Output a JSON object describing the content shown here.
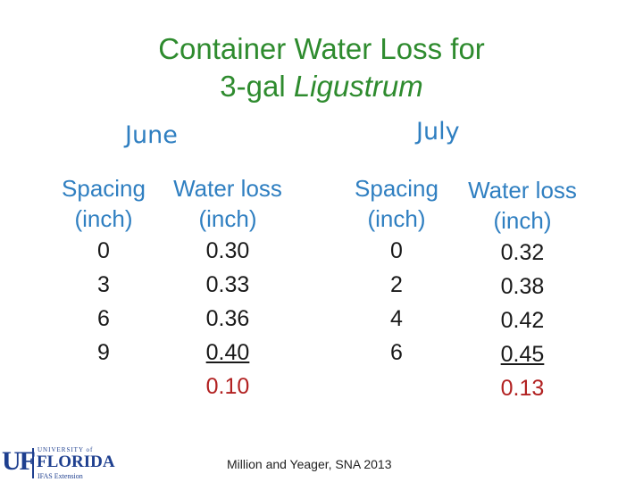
{
  "title": {
    "line1": "Container Water Loss for",
    "line2_prefix": "3-gal ",
    "line2_italic": "Ligustrum"
  },
  "june": {
    "label": "June",
    "spacing_header": [
      "Spacing",
      "(inch)"
    ],
    "loss_header": [
      "Water loss",
      "(inch)"
    ],
    "spacing": [
      "0",
      "3",
      "6",
      "9"
    ],
    "loss": [
      "0.30",
      "0.33",
      "0.36",
      "0.40"
    ],
    "difference": "0.10"
  },
  "july": {
    "label": "July",
    "spacing_header": [
      "Spacing",
      "(inch)"
    ],
    "loss_header": [
      "Water loss",
      "(inch)"
    ],
    "spacing": [
      "0",
      "2",
      "4",
      "6"
    ],
    "loss": [
      "0.32",
      "0.38",
      "0.42",
      "0.45"
    ],
    "difference": "0.13"
  },
  "footer": {
    "citation": "Million and Yeager, SNA 2013"
  },
  "logo": {
    "uf": "UF",
    "university_of": "UNIVERSITY of",
    "florida": "FLORIDA",
    "ifas": "IFAS Extension"
  },
  "colors": {
    "title": "#2e8b2e",
    "header": "#2f7fc1",
    "difference": "#b22222",
    "logo": "#1e3f8f"
  }
}
